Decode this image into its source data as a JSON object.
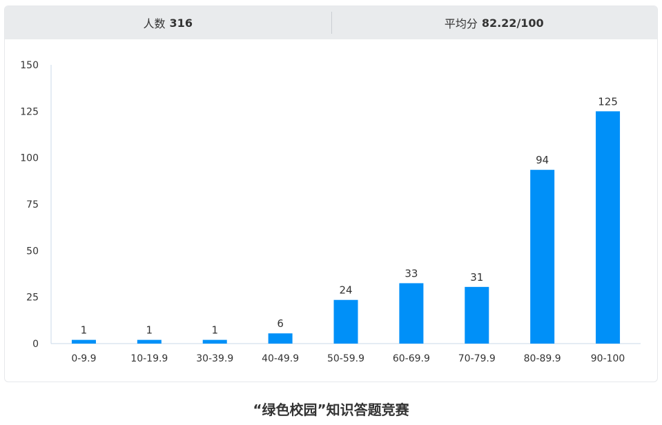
{
  "stats": {
    "count_label": "人数",
    "count_value": "316",
    "avg_label": "平均分",
    "avg_value": "82.22/100"
  },
  "chart_data": {
    "type": "bar",
    "title": "“绿色校园”知识答题竞赛",
    "categories": [
      "0-9.9",
      "10-19.9",
      "30-39.9",
      "40-49.9",
      "50-59.9",
      "60-69.9",
      "70-79.9",
      "80-89.9",
      "90-100"
    ],
    "values": [
      1,
      1,
      1,
      6,
      24,
      33,
      31,
      94,
      125
    ],
    "display_values": [
      2,
      2,
      2,
      5.5,
      23.5,
      32.5,
      30.5,
      93.5,
      125
    ],
    "ylim": [
      0,
      150
    ],
    "yticks": [
      0,
      25,
      50,
      75,
      100,
      125,
      150
    ],
    "grid": false,
    "bar_color": "#0090f8",
    "axis_color": "#c9d8ea"
  }
}
